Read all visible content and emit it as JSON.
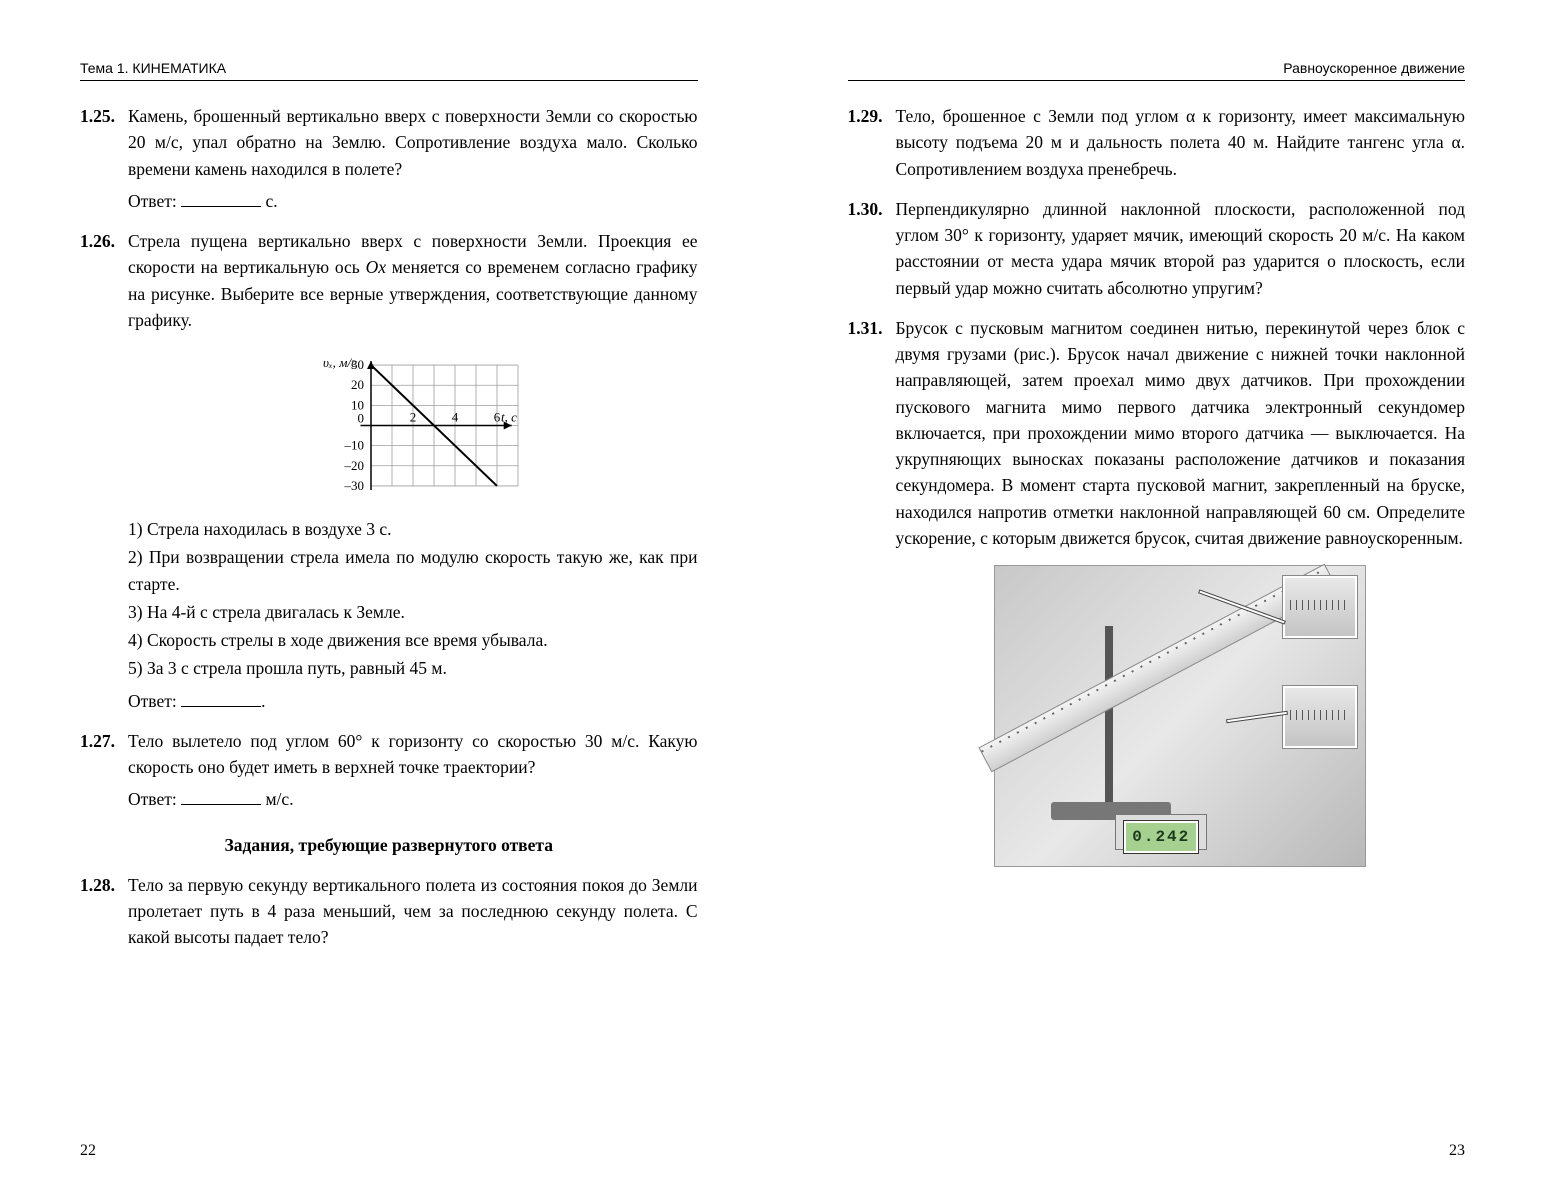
{
  "header_left": "Тема 1. КИНЕМАТИКА",
  "header_right": "Равноускоренное движение",
  "page_left_num": "22",
  "page_right_num": "23",
  "answer_label": "Ответ:",
  "units": {
    "s": "с.",
    "ms": "м/с."
  },
  "section_heading": "Задания, требующие развернутого ответа",
  "problems": {
    "p125": {
      "num": "1.25.",
      "text": "Камень, брошенный вертикально вверх с поверхности Земли со скоростью 20 м/с, упал обратно на Землю. Сопротивление воздуха мало. Сколько времени камень находился в полете?"
    },
    "p126": {
      "num": "1.26.",
      "text_pre": "Стрела пущена вертикально вверх с поверхности Земли. Проекция ее скорости на вертикальную ось ",
      "axis": "Ox",
      "text_post": " меняется со временем согласно графику на рисунке. Выберите все верные утверждения, соответствующие данному графику.",
      "statements": [
        "1) Стрела находилась в воздухе 3 с.",
        "2) При возвращении стрела имела по модулю скорость такую же, как при старте.",
        "3) На 4-й с стрела двигалась к Земле.",
        "4) Скорость стрелы в ходе движения все время убывала.",
        "5) За 3 с стрела прошла путь, равный 45 м."
      ]
    },
    "p127": {
      "num": "1.27.",
      "text": "Тело вылетело под углом 60° к горизонту со скоростью 30 м/с. Какую скорость оно будет иметь в верхней точке траектории?"
    },
    "p128": {
      "num": "1.28.",
      "text": "Тело за первую секунду вертикального полета из состояния покоя до Земли пролетает путь в 4 раза меньший, чем за последнюю секунду полета. С какой высоты падает тело?"
    },
    "p129": {
      "num": "1.29.",
      "text": "Тело, брошенное с Земли под углом α к горизонту, имеет максимальную высоту подъема 20 м и дальность полета 40 м. Найдите тангенс угла α. Сопротивлением воздуха пренебречь."
    },
    "p130": {
      "num": "1.30.",
      "text": "Перпендикулярно длинной наклонной плоскости, расположенной под углом 30° к горизонту, ударяет мячик, имеющий скорость 20 м/с. На каком расстоянии от места удара мячик второй раз ударится о плоскость, если первый удар можно считать абсолютно упругим?"
    },
    "p131": {
      "num": "1.31.",
      "text": "Брусок с пусковым магнитом соединен нитью, перекинутой через блок с двумя грузами (рис.). Брусок начал движение с нижней точки наклонной направляющей, затем проехал мимо двух датчиков. При прохождении пускового магнита мимо первого датчика электронный секундомер включается, при прохождении мимо второго датчика — выключается. На укрупняющих выносках показаны расположение датчиков и показания секундомера. В момент старта пусковой магнит, закрепленный на бруске, находился напротив отметки наклонной направляющей 60 см. Определите ускорение, с которым движется брусок, считая движение равноускоренным."
    }
  },
  "chart": {
    "y_label": "υₓ, м/с",
    "x_label": "t, с",
    "y_ticks": [
      -30,
      -20,
      -10,
      0,
      10,
      20,
      30
    ],
    "x_ticks": [
      0,
      2,
      4,
      6
    ],
    "x_range": [
      -1,
      7
    ],
    "y_range": [
      -35,
      35
    ],
    "line": {
      "p1": [
        0,
        30
      ],
      "p2": [
        6,
        -30
      ]
    },
    "grid_color": "#9e9e9e",
    "axis_color": "#000000",
    "line_color": "#000000",
    "font_size": 13
  },
  "photo": {
    "timer_reading": "0.242"
  }
}
